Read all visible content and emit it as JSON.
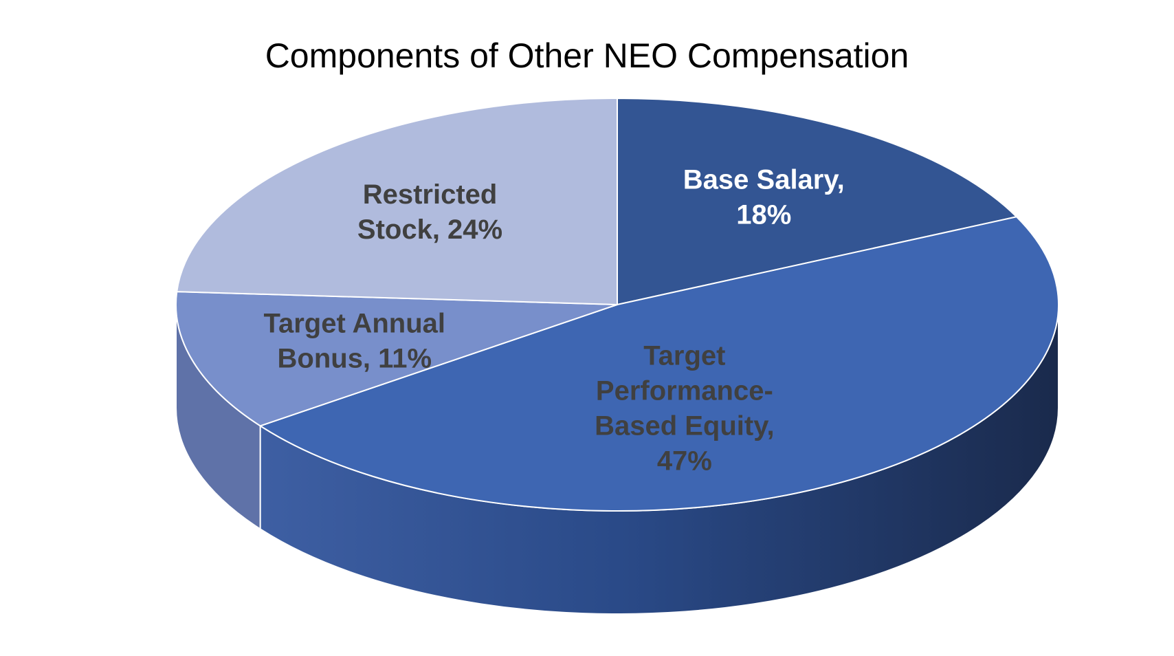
{
  "chart_data": {
    "type": "pie",
    "title": "Components of Other NEO Compensation",
    "style": "3d",
    "slices": [
      {
        "name": "Base Salary",
        "value": 18,
        "label_lines": [
          "Base Salary,",
          "18%"
        ],
        "color": "#335593",
        "side_color": "#233f70",
        "label_color": "#ffffff"
      },
      {
        "name": "Target Performance-Based Equity",
        "value": 47,
        "label_lines": [
          "Target",
          "Performance-",
          "Based Equity,",
          "47%"
        ],
        "color": "#3e66b2",
        "side_color": "#213a6c",
        "label_color": "#404040"
      },
      {
        "name": "Target Annual Bonus",
        "value": 11,
        "label_lines": [
          "Target Annual",
          "Bonus, 11%"
        ],
        "color": "#788fcb",
        "side_color": "#5f72a8",
        "label_color": "#404040"
      },
      {
        "name": "Restricted Stock",
        "value": 24,
        "label_lines": [
          "Restricted",
          "Stock, 24%"
        ],
        "color": "#b0bbdd",
        "side_color": "#8f9bc0",
        "label_color": "#404040"
      }
    ]
  }
}
